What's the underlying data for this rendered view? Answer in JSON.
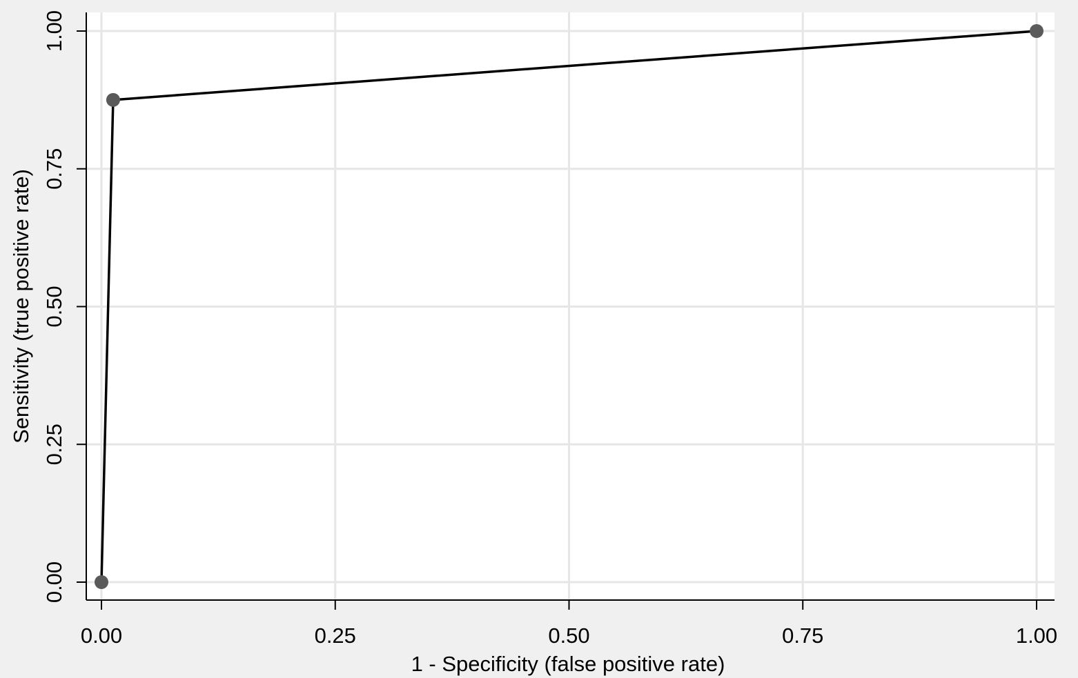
{
  "chart_data": {
    "type": "line",
    "title": "",
    "xlabel": "1 - Specificity (false positive rate)",
    "ylabel": "Sensitivity (true positive rate)",
    "xlim": [
      0,
      1
    ],
    "ylim": [
      0,
      1
    ],
    "x_ticks": [
      "0.00",
      "0.25",
      "0.50",
      "0.75",
      "1.00"
    ],
    "y_ticks": [
      "0.00",
      "0.25",
      "0.50",
      "0.75",
      "1.00"
    ],
    "grid": true,
    "legend": "none",
    "series": [
      {
        "x": [
          0.0,
          0.0125,
          1.0
        ],
        "y": [
          0.0,
          0.875,
          1.0
        ]
      }
    ],
    "colors": {
      "background": "#f0f0f0",
      "plot_area": "#ffffff",
      "grid": "#e6e6e6",
      "axis": "#000000",
      "line": "#000000",
      "marker": "#5a5a5a"
    }
  }
}
